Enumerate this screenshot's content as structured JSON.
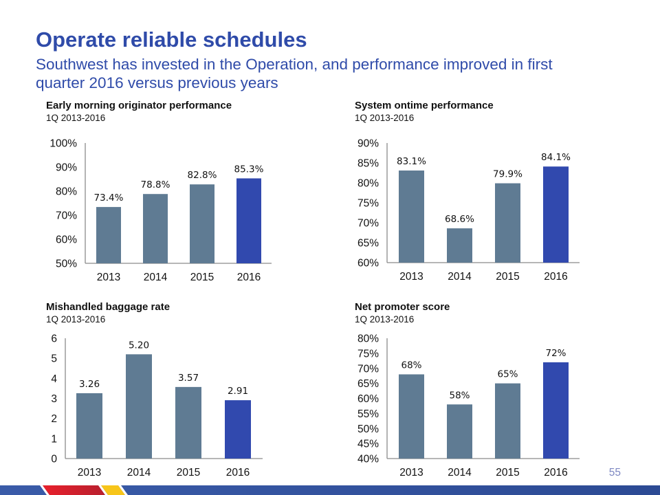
{
  "page": {
    "title": "Operate reliable schedules",
    "subtitle": "Southwest has invested in the Operation, and performance improved in first quarter 2016 versus previous years",
    "page_number": "55"
  },
  "colors": {
    "title": "#2f4ba9",
    "bar_default": "#5f7b93",
    "bar_highlight": "#3149ae",
    "axis": "#8a8a8a",
    "stripe_blue": "#3a5ba8",
    "stripe_red": "#e0202e",
    "stripe_yellow": "#f7c51a"
  },
  "chart_data": [
    {
      "type": "bar",
      "title": "Early morning originator performance",
      "subtitle": "1Q 2013-2016",
      "categories": [
        "2013",
        "2014",
        "2015",
        "2016"
      ],
      "values": [
        73.4,
        78.8,
        82.8,
        85.3
      ],
      "value_labels": [
        "73.4%",
        "78.8%",
        "82.8%",
        "85.3%"
      ],
      "highlight_index": 3,
      "ylim": [
        50,
        100
      ],
      "yticks": [
        50,
        60,
        70,
        80,
        90,
        100
      ],
      "ytick_labels": [
        "50%",
        "60%",
        "70%",
        "80%",
        "90%",
        "100%"
      ],
      "xlabel": "",
      "ylabel": "",
      "grid": false,
      "legend": "none"
    },
    {
      "type": "bar",
      "title": "System ontime performance",
      "subtitle": "1Q 2013-2016",
      "categories": [
        "2013",
        "2014",
        "2015",
        "2016"
      ],
      "values": [
        83.1,
        68.6,
        79.9,
        84.1
      ],
      "value_labels": [
        "83.1%",
        "68.6%",
        "79.9%",
        "84.1%"
      ],
      "highlight_index": 3,
      "ylim": [
        60,
        90
      ],
      "yticks": [
        60,
        65,
        70,
        75,
        80,
        85,
        90
      ],
      "ytick_labels": [
        "60%",
        "65%",
        "70%",
        "75%",
        "80%",
        "85%",
        "90%"
      ],
      "xlabel": "",
      "ylabel": "",
      "grid": false,
      "legend": "none"
    },
    {
      "type": "bar",
      "title": "Mishandled baggage rate",
      "subtitle": "1Q 2013-2016",
      "categories": [
        "2013",
        "2014",
        "2015",
        "2016"
      ],
      "values": [
        3.26,
        5.2,
        3.57,
        2.91
      ],
      "value_labels": [
        "3.26",
        "5.20",
        "3.57",
        "2.91"
      ],
      "highlight_index": 3,
      "ylim": [
        0,
        6
      ],
      "yticks": [
        0,
        1,
        2,
        3,
        4,
        5,
        6
      ],
      "ytick_labels": [
        "0",
        "1",
        "2",
        "3",
        "4",
        "5",
        "6"
      ],
      "xlabel": "",
      "ylabel": "",
      "grid": false,
      "legend": "none"
    },
    {
      "type": "bar",
      "title": "Net promoter score",
      "subtitle": "1Q 2013-2016",
      "categories": [
        "2013",
        "2014",
        "2015",
        "2016"
      ],
      "values": [
        68,
        58,
        65,
        72
      ],
      "value_labels": [
        "68%",
        "58%",
        "65%",
        "72%"
      ],
      "highlight_index": 3,
      "ylim": [
        40,
        80
      ],
      "yticks": [
        40,
        45,
        50,
        55,
        60,
        65,
        70,
        75,
        80
      ],
      "ytick_labels": [
        "40%",
        "45%",
        "50%",
        "55%",
        "60%",
        "65%",
        "70%",
        "75%",
        "80%"
      ],
      "xlabel": "",
      "ylabel": "",
      "grid": false,
      "legend": "none"
    }
  ]
}
